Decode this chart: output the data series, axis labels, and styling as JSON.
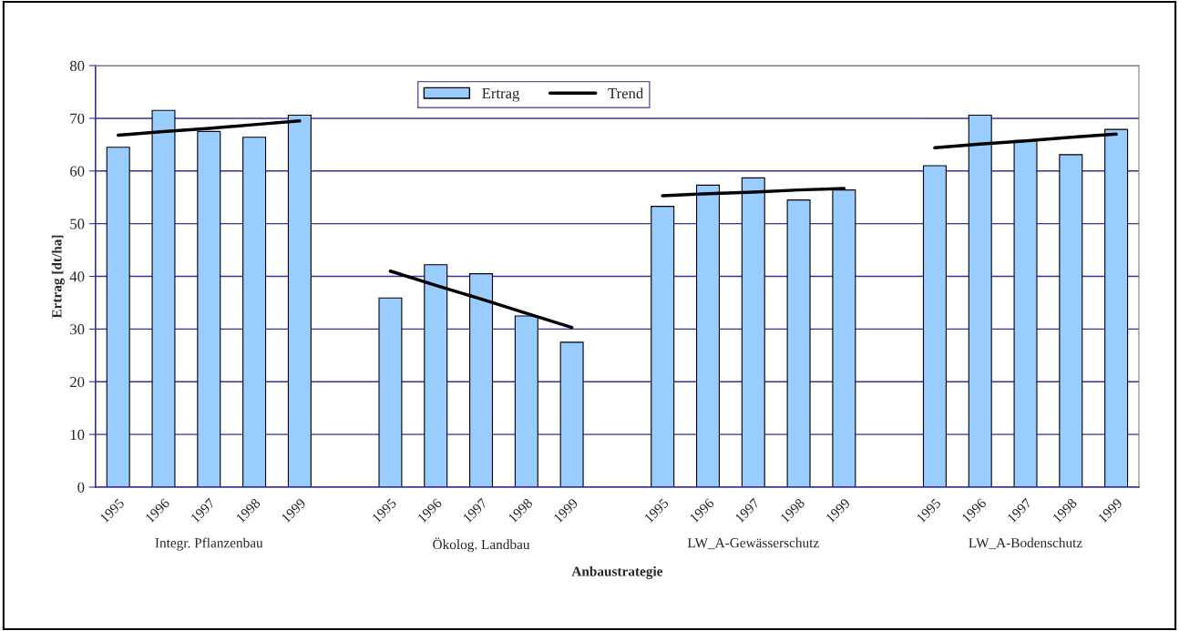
{
  "chart_data": {
    "type": "bar",
    "xlabel": "Anbaustrategie",
    "ylabel": "Ertrag [dt/ha]",
    "categories": [
      "1995",
      "1996",
      "1997",
      "1998",
      "1999",
      null,
      "1995",
      "1996",
      "1997",
      "1998",
      "1999",
      null,
      "1995",
      "1996",
      "1997",
      "1998",
      "1999",
      null,
      "1995",
      "1996",
      "1997",
      "1998",
      "1999"
    ],
    "series": [
      {
        "name": "Ertrag",
        "color": "#99ccff",
        "values": [
          64.5,
          71.5,
          67.5,
          66.4,
          70.6,
          null,
          35.9,
          42.2,
          40.5,
          32.5,
          27.5,
          null,
          53.3,
          57.3,
          58.7,
          54.5,
          56.4,
          null,
          61,
          70.6,
          65.8,
          63.1,
          67.9
        ]
      },
      {
        "name": "Trend",
        "type": "line",
        "color": "#000000",
        "values": [
          66.8,
          67.5,
          68.1,
          68.8,
          69.5,
          null,
          41,
          38.3,
          35.7,
          33,
          30.3,
          null,
          55.3,
          55.7,
          56,
          56.4,
          56.7,
          null,
          64.4,
          65.1,
          65.7,
          66.4,
          67
        ]
      }
    ],
    "ylim": [
      0,
      80
    ],
    "yticks": [
      0,
      10,
      20,
      30,
      40,
      50,
      60,
      70,
      80
    ],
    "grid": "y",
    "legend": "top",
    "marker": "none",
    "line_style": "solid",
    "annotations": [
      "Integr. Pflanzenbau",
      "Ökolog. Landbau",
      "LW_A-Gewässerschutz",
      "LW_A-Bodenschutz"
    ]
  }
}
